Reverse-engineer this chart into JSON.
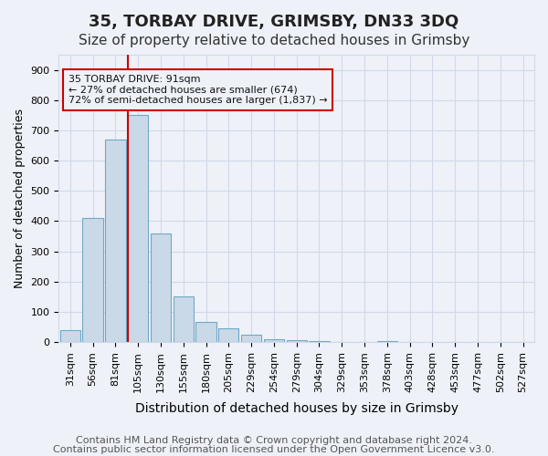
{
  "title1": "35, TORBAY DRIVE, GRIMSBY, DN33 3DQ",
  "title2": "Size of property relative to detached houses in Grimsby",
  "xlabel": "Distribution of detached houses by size in Grimsby",
  "ylabel": "Number of detached properties",
  "bar_labels": [
    "31sqm",
    "56sqm",
    "81sqm",
    "105sqm",
    "130sqm",
    "155sqm",
    "180sqm",
    "205sqm",
    "229sqm",
    "254sqm",
    "279sqm",
    "304sqm",
    "329sqm",
    "353sqm",
    "378sqm",
    "403sqm",
    "428sqm",
    "453sqm",
    "477sqm",
    "502sqm",
    "527sqm"
  ],
  "bar_values": [
    40,
    410,
    670,
    750,
    360,
    150,
    65,
    45,
    25,
    10,
    5,
    2,
    0,
    0,
    2,
    0,
    0,
    0,
    0,
    0,
    0
  ],
  "bar_color": "#c9d9e8",
  "bar_edge_color": "#6fa8c8",
  "grid_color": "#d0d8e8",
  "bg_color": "#eef2f8",
  "vline_x": 3,
  "vline_color": "#cc0000",
  "annotation_text": "35 TORBAY DRIVE: 91sqm\n← 27% of detached houses are smaller (674)\n72% of semi-detached houses are larger (1,837) →",
  "annotation_box_color": "#cc0000",
  "ylim": [
    0,
    950
  ],
  "yticks": [
    0,
    100,
    200,
    300,
    400,
    500,
    600,
    700,
    800,
    900
  ],
  "footer1": "Contains HM Land Registry data © Crown copyright and database right 2024.",
  "footer2": "Contains public sector information licensed under the Open Government Licence v3.0.",
  "title1_fontsize": 13,
  "title2_fontsize": 11,
  "xlabel_fontsize": 10,
  "ylabel_fontsize": 9,
  "tick_fontsize": 8,
  "footer_fontsize": 8
}
